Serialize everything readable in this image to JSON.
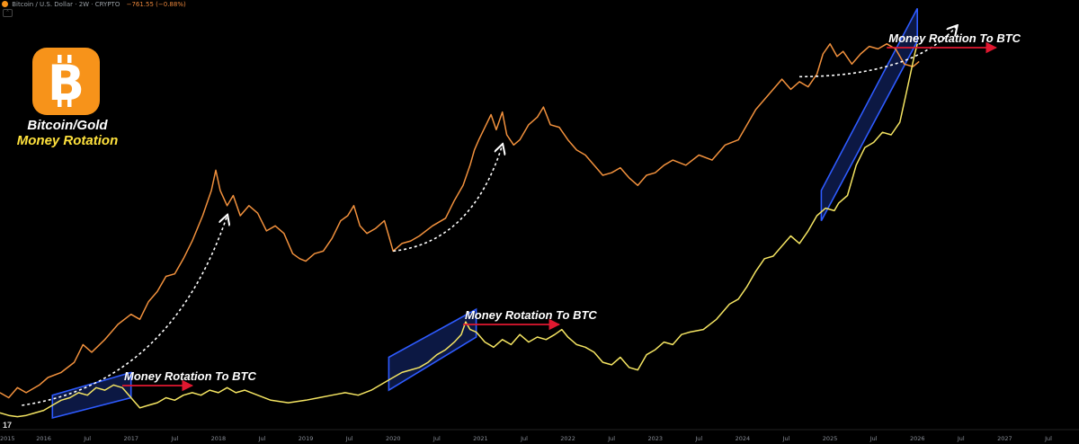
{
  "header": {
    "symbol_line": "Bitcoin / U.S. Dollar · 2W · CRYPTO",
    "change": "−761.55 (−0.88%)"
  },
  "brand": {
    "logo_icon": "bitcoin-logo-icon",
    "line1": "Bitcoin/Gold",
    "line2": "Money Rotation"
  },
  "tradingview_mark": "17",
  "colors": {
    "btc_usd": "#f2913d",
    "btc_gold": "#f5e562",
    "channel_fill": "#0d1b4a",
    "channel_stroke": "#2e5bff",
    "arrow_red": "#e01830",
    "arrow_white": "#ffffff"
  },
  "annotations": [
    {
      "text": "Money Rotation To BTC",
      "x": 2016.9,
      "y": 0.92,
      "arrow_to": 2017.7
    },
    {
      "text": "Money Rotation To BTC",
      "x": 2020.8,
      "y": 0.92,
      "arrow_to": 2021.9
    },
    {
      "text": "Money Rotation To BTC",
      "x": 2025.65,
      "y": 0.92,
      "arrow_to": 2026.9
    }
  ],
  "chart_data": {
    "type": "line",
    "title": "",
    "xlabel": "",
    "ylabel": "",
    "xlim": [
      2015.5,
      2027.85
    ],
    "grid": false,
    "x_ticks": [
      {
        "x": 2015.5,
        "label": "2015"
      },
      {
        "x": 2016.0,
        "label": "2016"
      },
      {
        "x": 2016.5,
        "label": "Jul"
      },
      {
        "x": 2017.0,
        "label": "2017"
      },
      {
        "x": 2017.5,
        "label": "Jul"
      },
      {
        "x": 2018.0,
        "label": "2018"
      },
      {
        "x": 2018.5,
        "label": "Jul"
      },
      {
        "x": 2019.0,
        "label": "2019"
      },
      {
        "x": 2019.5,
        "label": "Jul"
      },
      {
        "x": 2020.0,
        "label": "2020"
      },
      {
        "x": 2020.5,
        "label": "Jul"
      },
      {
        "x": 2021.0,
        "label": "2021"
      },
      {
        "x": 2021.5,
        "label": "Jul"
      },
      {
        "x": 2022.0,
        "label": "2022"
      },
      {
        "x": 2022.5,
        "label": "Jul"
      },
      {
        "x": 2023.0,
        "label": "2023"
      },
      {
        "x": 2023.5,
        "label": "Jul"
      },
      {
        "x": 2024.0,
        "label": "2024"
      },
      {
        "x": 2024.5,
        "label": "Jul"
      },
      {
        "x": 2025.0,
        "label": "2025"
      },
      {
        "x": 2025.5,
        "label": "Jul"
      },
      {
        "x": 2026.0,
        "label": "2026"
      },
      {
        "x": 2026.5,
        "label": "Jul"
      },
      {
        "x": 2027.0,
        "label": "2027"
      },
      {
        "x": 2027.5,
        "label": "Jul"
      }
    ],
    "series": [
      {
        "name": "",
        "role": "btc_usd",
        "points": [
          [
            2015.5,
            0.1
          ],
          [
            2015.6,
            0.08
          ],
          [
            2015.7,
            0.12
          ],
          [
            2015.8,
            0.1
          ],
          [
            2015.95,
            0.13
          ],
          [
            2016.05,
            0.16
          ],
          [
            2016.2,
            0.18
          ],
          [
            2016.35,
            0.22
          ],
          [
            2016.45,
            0.29
          ],
          [
            2016.55,
            0.26
          ],
          [
            2016.7,
            0.31
          ],
          [
            2016.85,
            0.37
          ],
          [
            2017.0,
            0.41
          ],
          [
            2017.1,
            0.39
          ],
          [
            2017.2,
            0.46
          ],
          [
            2017.3,
            0.5
          ],
          [
            2017.4,
            0.56
          ],
          [
            2017.5,
            0.57
          ],
          [
            2017.6,
            0.63
          ],
          [
            2017.7,
            0.7
          ],
          [
            2017.82,
            0.8
          ],
          [
            2017.92,
            0.9
          ],
          [
            2017.97,
            0.98
          ],
          [
            2018.02,
            0.9
          ],
          [
            2018.1,
            0.84
          ],
          [
            2018.17,
            0.88
          ],
          [
            2018.25,
            0.8
          ],
          [
            2018.35,
            0.84
          ],
          [
            2018.45,
            0.81
          ],
          [
            2018.55,
            0.74
          ],
          [
            2018.65,
            0.76
          ],
          [
            2018.75,
            0.73
          ],
          [
            2018.85,
            0.65
          ],
          [
            2018.93,
            0.63
          ],
          [
            2019.0,
            0.62
          ],
          [
            2019.1,
            0.65
          ],
          [
            2019.2,
            0.66
          ],
          [
            2019.3,
            0.71
          ],
          [
            2019.4,
            0.78
          ],
          [
            2019.48,
            0.8
          ],
          [
            2019.55,
            0.84
          ],
          [
            2019.62,
            0.76
          ],
          [
            2019.7,
            0.73
          ],
          [
            2019.8,
            0.75
          ],
          [
            2019.9,
            0.78
          ],
          [
            2019.95,
            0.72
          ],
          [
            2020.0,
            0.66
          ],
          [
            2020.1,
            0.69
          ],
          [
            2020.2,
            0.7
          ],
          [
            2020.3,
            0.72
          ],
          [
            2020.45,
            0.76
          ],
          [
            2020.6,
            0.79
          ],
          [
            2020.7,
            0.86
          ],
          [
            2020.8,
            0.92
          ],
          [
            2020.88,
            1.0
          ],
          [
            2020.93,
            1.06
          ],
          [
            2020.98,
            1.1
          ],
          [
            2021.05,
            1.15
          ],
          [
            2021.12,
            1.2
          ],
          [
            2021.18,
            1.14
          ],
          [
            2021.25,
            1.21
          ],
          [
            2021.3,
            1.12
          ],
          [
            2021.38,
            1.08
          ],
          [
            2021.45,
            1.1
          ],
          [
            2021.55,
            1.16
          ],
          [
            2021.65,
            1.19
          ],
          [
            2021.72,
            1.23
          ],
          [
            2021.8,
            1.16
          ],
          [
            2021.9,
            1.15
          ],
          [
            2022.0,
            1.1
          ],
          [
            2022.1,
            1.06
          ],
          [
            2022.2,
            1.04
          ],
          [
            2022.3,
            1.0
          ],
          [
            2022.4,
            0.96
          ],
          [
            2022.5,
            0.97
          ],
          [
            2022.6,
            0.99
          ],
          [
            2022.7,
            0.95
          ],
          [
            2022.8,
            0.92
          ],
          [
            2022.9,
            0.96
          ],
          [
            2023.0,
            0.97
          ],
          [
            2023.1,
            1.0
          ],
          [
            2023.2,
            1.02
          ],
          [
            2023.35,
            1.0
          ],
          [
            2023.5,
            1.04
          ],
          [
            2023.65,
            1.02
          ],
          [
            2023.8,
            1.08
          ],
          [
            2023.95,
            1.1
          ],
          [
            2024.05,
            1.16
          ],
          [
            2024.15,
            1.22
          ],
          [
            2024.25,
            1.26
          ],
          [
            2024.35,
            1.3
          ],
          [
            2024.45,
            1.34
          ],
          [
            2024.55,
            1.3
          ],
          [
            2024.65,
            1.33
          ],
          [
            2024.75,
            1.31
          ],
          [
            2024.85,
            1.36
          ],
          [
            2024.92,
            1.44
          ],
          [
            2025.0,
            1.48
          ],
          [
            2025.08,
            1.43
          ],
          [
            2025.15,
            1.45
          ],
          [
            2025.25,
            1.4
          ],
          [
            2025.35,
            1.44
          ],
          [
            2025.45,
            1.47
          ],
          [
            2025.55,
            1.46
          ],
          [
            2025.65,
            1.48
          ],
          [
            2025.75,
            1.46
          ],
          [
            2025.85,
            1.4
          ],
          [
            2025.95,
            1.39
          ],
          [
            2026.02,
            1.41
          ]
        ]
      },
      {
        "name": "",
        "role": "btc_gold",
        "points": [
          [
            2015.5,
            0.02
          ],
          [
            2015.6,
            0.01
          ],
          [
            2015.7,
            0.005
          ],
          [
            2015.8,
            0.01
          ],
          [
            2015.9,
            0.02
          ],
          [
            2016.0,
            0.03
          ],
          [
            2016.1,
            0.05
          ],
          [
            2016.2,
            0.07
          ],
          [
            2016.3,
            0.08
          ],
          [
            2016.4,
            0.1
          ],
          [
            2016.5,
            0.09
          ],
          [
            2016.6,
            0.12
          ],
          [
            2016.7,
            0.11
          ],
          [
            2016.8,
            0.13
          ],
          [
            2016.9,
            0.12
          ],
          [
            2017.0,
            0.08
          ],
          [
            2017.1,
            0.04
          ],
          [
            2017.2,
            0.05
          ],
          [
            2017.3,
            0.06
          ],
          [
            2017.4,
            0.08
          ],
          [
            2017.5,
            0.07
          ],
          [
            2017.6,
            0.09
          ],
          [
            2017.7,
            0.1
          ],
          [
            2017.8,
            0.09
          ],
          [
            2017.9,
            0.11
          ],
          [
            2018.0,
            0.1
          ],
          [
            2018.1,
            0.12
          ],
          [
            2018.2,
            0.1
          ],
          [
            2018.3,
            0.11
          ],
          [
            2018.45,
            0.09
          ],
          [
            2018.6,
            0.07
          ],
          [
            2018.8,
            0.06
          ],
          [
            2019.0,
            0.07
          ],
          [
            2019.15,
            0.08
          ],
          [
            2019.3,
            0.09
          ],
          [
            2019.45,
            0.1
          ],
          [
            2019.6,
            0.09
          ],
          [
            2019.75,
            0.11
          ],
          [
            2019.9,
            0.14
          ],
          [
            2020.0,
            0.16
          ],
          [
            2020.1,
            0.18
          ],
          [
            2020.2,
            0.19
          ],
          [
            2020.3,
            0.2
          ],
          [
            2020.4,
            0.22
          ],
          [
            2020.5,
            0.25
          ],
          [
            2020.6,
            0.27
          ],
          [
            2020.7,
            0.3
          ],
          [
            2020.78,
            0.33
          ],
          [
            2020.83,
            0.38
          ],
          [
            2020.88,
            0.35
          ],
          [
            2020.95,
            0.34
          ],
          [
            2021.05,
            0.3
          ],
          [
            2021.15,
            0.28
          ],
          [
            2021.25,
            0.31
          ],
          [
            2021.35,
            0.29
          ],
          [
            2021.45,
            0.33
          ],
          [
            2021.55,
            0.3
          ],
          [
            2021.65,
            0.32
          ],
          [
            2021.75,
            0.31
          ],
          [
            2021.85,
            0.33
          ],
          [
            2021.93,
            0.35
          ],
          [
            2022.0,
            0.32
          ],
          [
            2022.1,
            0.29
          ],
          [
            2022.2,
            0.28
          ],
          [
            2022.3,
            0.26
          ],
          [
            2022.4,
            0.22
          ],
          [
            2022.5,
            0.21
          ],
          [
            2022.6,
            0.24
          ],
          [
            2022.7,
            0.2
          ],
          [
            2022.8,
            0.19
          ],
          [
            2022.9,
            0.25
          ],
          [
            2023.0,
            0.27
          ],
          [
            2023.1,
            0.3
          ],
          [
            2023.2,
            0.29
          ],
          [
            2023.3,
            0.33
          ],
          [
            2023.4,
            0.34
          ],
          [
            2023.55,
            0.35
          ],
          [
            2023.7,
            0.39
          ],
          [
            2023.85,
            0.45
          ],
          [
            2023.95,
            0.47
          ],
          [
            2024.05,
            0.52
          ],
          [
            2024.15,
            0.58
          ],
          [
            2024.25,
            0.63
          ],
          [
            2024.35,
            0.64
          ],
          [
            2024.45,
            0.68
          ],
          [
            2024.55,
            0.72
          ],
          [
            2024.65,
            0.69
          ],
          [
            2024.75,
            0.74
          ],
          [
            2024.85,
            0.8
          ],
          [
            2024.95,
            0.83
          ],
          [
            2025.05,
            0.82
          ],
          [
            2025.1,
            0.85
          ],
          [
            2025.2,
            0.88
          ],
          [
            2025.3,
            1.0
          ],
          [
            2025.4,
            1.07
          ],
          [
            2025.5,
            1.09
          ],
          [
            2025.6,
            1.13
          ],
          [
            2025.7,
            1.12
          ],
          [
            2025.8,
            1.17
          ],
          [
            2025.87,
            1.28
          ],
          [
            2025.92,
            1.36
          ],
          [
            2025.97,
            1.44
          ],
          [
            2026.0,
            1.48
          ]
        ]
      }
    ],
    "channels": [
      {
        "x0": 2016.1,
        "x1": 2017.0,
        "y_low": [
          0.0,
          0.08
        ],
        "y_high": [
          0.09,
          0.18
        ]
      },
      {
        "x0": 2019.95,
        "x1": 2020.95,
        "y_low": [
          0.11,
          0.32
        ],
        "y_high": [
          0.24,
          0.43
        ]
      },
      {
        "x0": 2024.9,
        "x1": 2026.0,
        "y_low": [
          0.78,
          1.49
        ],
        "y_high": [
          0.9,
          1.62
        ]
      }
    ],
    "curved_arrows": [
      {
        "from": [
          2015.75,
          0.05
        ],
        "to": [
          2018.1,
          0.8
        ]
      },
      {
        "from": [
          2020.0,
          0.66
        ],
        "to": [
          2021.25,
          1.08
        ]
      },
      {
        "from": [
          2024.65,
          1.35
        ],
        "to": [
          2026.45,
          1.55
        ]
      }
    ]
  }
}
